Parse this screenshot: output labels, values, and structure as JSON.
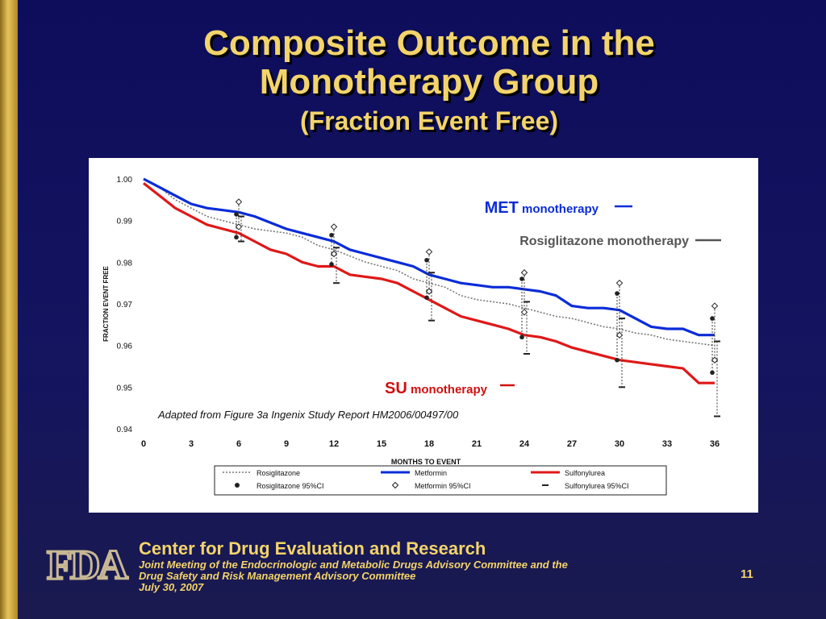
{
  "slide": {
    "title_line1": "Composite Outcome in the",
    "title_line2": "Monotherapy Group",
    "title_line3": "(Fraction Event Free)",
    "footer_center": "Center for Drug Evaluation and Research",
    "footer_meeting": "Joint Meeting of the Endocrinologic and Metabolic Drugs Advisory Committee and the",
    "footer_committee": "Drug Safety and Risk Management Advisory Committee",
    "footer_date": "July 30, 2007",
    "page_number": "11",
    "logo_text": "FDA",
    "colors": {
      "background": "#0d0d5c",
      "gold": "#f3d46a",
      "accent_bar": "#c9a23c"
    }
  },
  "chart_data": {
    "type": "line",
    "xlabel": "MONTHS TO EVENT",
    "ylabel": "FRACTION EVENT FREE",
    "xlim": [
      0,
      36
    ],
    "ylim": [
      0.94,
      1.0
    ],
    "x_ticks": [
      0,
      3,
      6,
      9,
      12,
      15,
      18,
      21,
      24,
      27,
      30,
      33,
      36
    ],
    "y_ticks": [
      "0.94",
      "0.95",
      "0.96",
      "0.97",
      "0.98",
      "0.99",
      "1.00"
    ],
    "annotation": "Adapted from Figure 3a Ingenix Study Report HM2006/00497/00",
    "callouts": [
      {
        "series": "Metformin",
        "label_bold": "MET",
        "label_rest": " monotherapy",
        "color": "#0a2cd8"
      },
      {
        "series": "Rosiglitazone",
        "label_bold": "Rosiglitazone monotherapy",
        "label_rest": "",
        "color": "#555555"
      },
      {
        "series": "Sulfonylurea",
        "label_bold": "SU",
        "label_rest": " monotherapy",
        "color": "#d01010"
      }
    ],
    "legend": {
      "items": [
        "Rosiglitazone",
        "Metformin",
        "Sulfonylurea",
        "Rosiglitazone 95%CI",
        "Metformin 95%CI",
        "Sulfonylurea 95%CI"
      ]
    },
    "series": [
      {
        "name": "Rosiglitazone",
        "color": "#777777",
        "points": [
          [
            0,
            1.0
          ],
          [
            1,
            0.998
          ],
          [
            2,
            0.995
          ],
          [
            3,
            0.993
          ],
          [
            4,
            0.991
          ],
          [
            5,
            0.99
          ],
          [
            6,
            0.989
          ],
          [
            7,
            0.988
          ],
          [
            8,
            0.9875
          ],
          [
            9,
            0.987
          ],
          [
            10,
            0.986
          ],
          [
            11,
            0.984
          ],
          [
            12,
            0.983
          ],
          [
            13,
            0.9815
          ],
          [
            14,
            0.98
          ],
          [
            15,
            0.979
          ],
          [
            16,
            0.978
          ],
          [
            17,
            0.976
          ],
          [
            18,
            0.975
          ],
          [
            19,
            0.974
          ],
          [
            20,
            0.972
          ],
          [
            21,
            0.971
          ],
          [
            22,
            0.9705
          ],
          [
            23,
            0.97
          ],
          [
            24,
            0.969
          ],
          [
            25,
            0.968
          ],
          [
            26,
            0.967
          ],
          [
            27,
            0.9665
          ],
          [
            28,
            0.9655
          ],
          [
            29,
            0.9645
          ],
          [
            30,
            0.964
          ],
          [
            31,
            0.963
          ],
          [
            32,
            0.9625
          ],
          [
            33,
            0.9615
          ],
          [
            34,
            0.961
          ],
          [
            35,
            0.9605
          ],
          [
            36,
            0.96
          ]
        ]
      },
      {
        "name": "Metformin",
        "color": "#0a2cd8",
        "points": [
          [
            0,
            1.0
          ],
          [
            1,
            0.998
          ],
          [
            2,
            0.996
          ],
          [
            3,
            0.994
          ],
          [
            4,
            0.993
          ],
          [
            5,
            0.9925
          ],
          [
            6,
            0.992
          ],
          [
            7,
            0.991
          ],
          [
            8,
            0.9895
          ],
          [
            9,
            0.988
          ],
          [
            10,
            0.987
          ],
          [
            11,
            0.986
          ],
          [
            12,
            0.985
          ],
          [
            13,
            0.983
          ],
          [
            14,
            0.982
          ],
          [
            15,
            0.981
          ],
          [
            16,
            0.98
          ],
          [
            17,
            0.979
          ],
          [
            18,
            0.977
          ],
          [
            19,
            0.976
          ],
          [
            20,
            0.975
          ],
          [
            21,
            0.9745
          ],
          [
            22,
            0.974
          ],
          [
            23,
            0.974
          ],
          [
            24,
            0.9735
          ],
          [
            25,
            0.973
          ],
          [
            26,
            0.972
          ],
          [
            27,
            0.9695
          ],
          [
            28,
            0.969
          ],
          [
            29,
            0.969
          ],
          [
            30,
            0.9685
          ],
          [
            31,
            0.9665
          ],
          [
            32,
            0.9645
          ],
          [
            33,
            0.964
          ],
          [
            34,
            0.964
          ],
          [
            35,
            0.9625
          ],
          [
            36,
            0.9625
          ]
        ]
      },
      {
        "name": "Sulfonylurea",
        "color": "#e01818",
        "points": [
          [
            0,
            0.999
          ],
          [
            1,
            0.996
          ],
          [
            2,
            0.993
          ],
          [
            3,
            0.991
          ],
          [
            4,
            0.989
          ],
          [
            5,
            0.988
          ],
          [
            6,
            0.987
          ],
          [
            7,
            0.985
          ],
          [
            8,
            0.983
          ],
          [
            9,
            0.982
          ],
          [
            10,
            0.98
          ],
          [
            11,
            0.979
          ],
          [
            12,
            0.979
          ],
          [
            13,
            0.977
          ],
          [
            14,
            0.9765
          ],
          [
            15,
            0.976
          ],
          [
            16,
            0.975
          ],
          [
            17,
            0.973
          ],
          [
            18,
            0.971
          ],
          [
            19,
            0.969
          ],
          [
            20,
            0.967
          ],
          [
            21,
            0.966
          ],
          [
            22,
            0.965
          ],
          [
            23,
            0.964
          ],
          [
            24,
            0.9625
          ],
          [
            25,
            0.962
          ],
          [
            26,
            0.961
          ],
          [
            27,
            0.9595
          ],
          [
            28,
            0.9585
          ],
          [
            29,
            0.9575
          ],
          [
            30,
            0.9565
          ],
          [
            31,
            0.956
          ],
          [
            32,
            0.9555
          ],
          [
            33,
            0.955
          ],
          [
            34,
            0.9545
          ],
          [
            35,
            0.951
          ],
          [
            36,
            0.951
          ]
        ]
      }
    ],
    "confidence_intervals": [
      {
        "series": "Rosiglitazone",
        "x": [
          6,
          12,
          18,
          24,
          30,
          36
        ],
        "lower": [
          0.986,
          0.9795,
          0.9715,
          0.962,
          0.9565,
          0.9535
        ],
        "upper": [
          0.9915,
          0.9865,
          0.9805,
          0.976,
          0.9725,
          0.9665
        ]
      },
      {
        "series": "Metformin",
        "x": [
          6,
          12,
          18,
          24,
          30,
          36
        ],
        "lower": [
          0.9885,
          0.982,
          0.973,
          0.968,
          0.9625,
          0.9565
        ],
        "upper": [
          0.9945,
          0.9885,
          0.9825,
          0.9775,
          0.975,
          0.9695
        ]
      },
      {
        "series": "Sulfonylurea",
        "x": [
          6,
          12,
          18,
          24,
          30,
          36
        ],
        "lower": [
          0.985,
          0.975,
          0.966,
          0.958,
          0.95,
          0.943
        ],
        "upper": [
          0.991,
          0.9835,
          0.9775,
          0.9705,
          0.9665,
          0.961
        ]
      }
    ]
  }
}
